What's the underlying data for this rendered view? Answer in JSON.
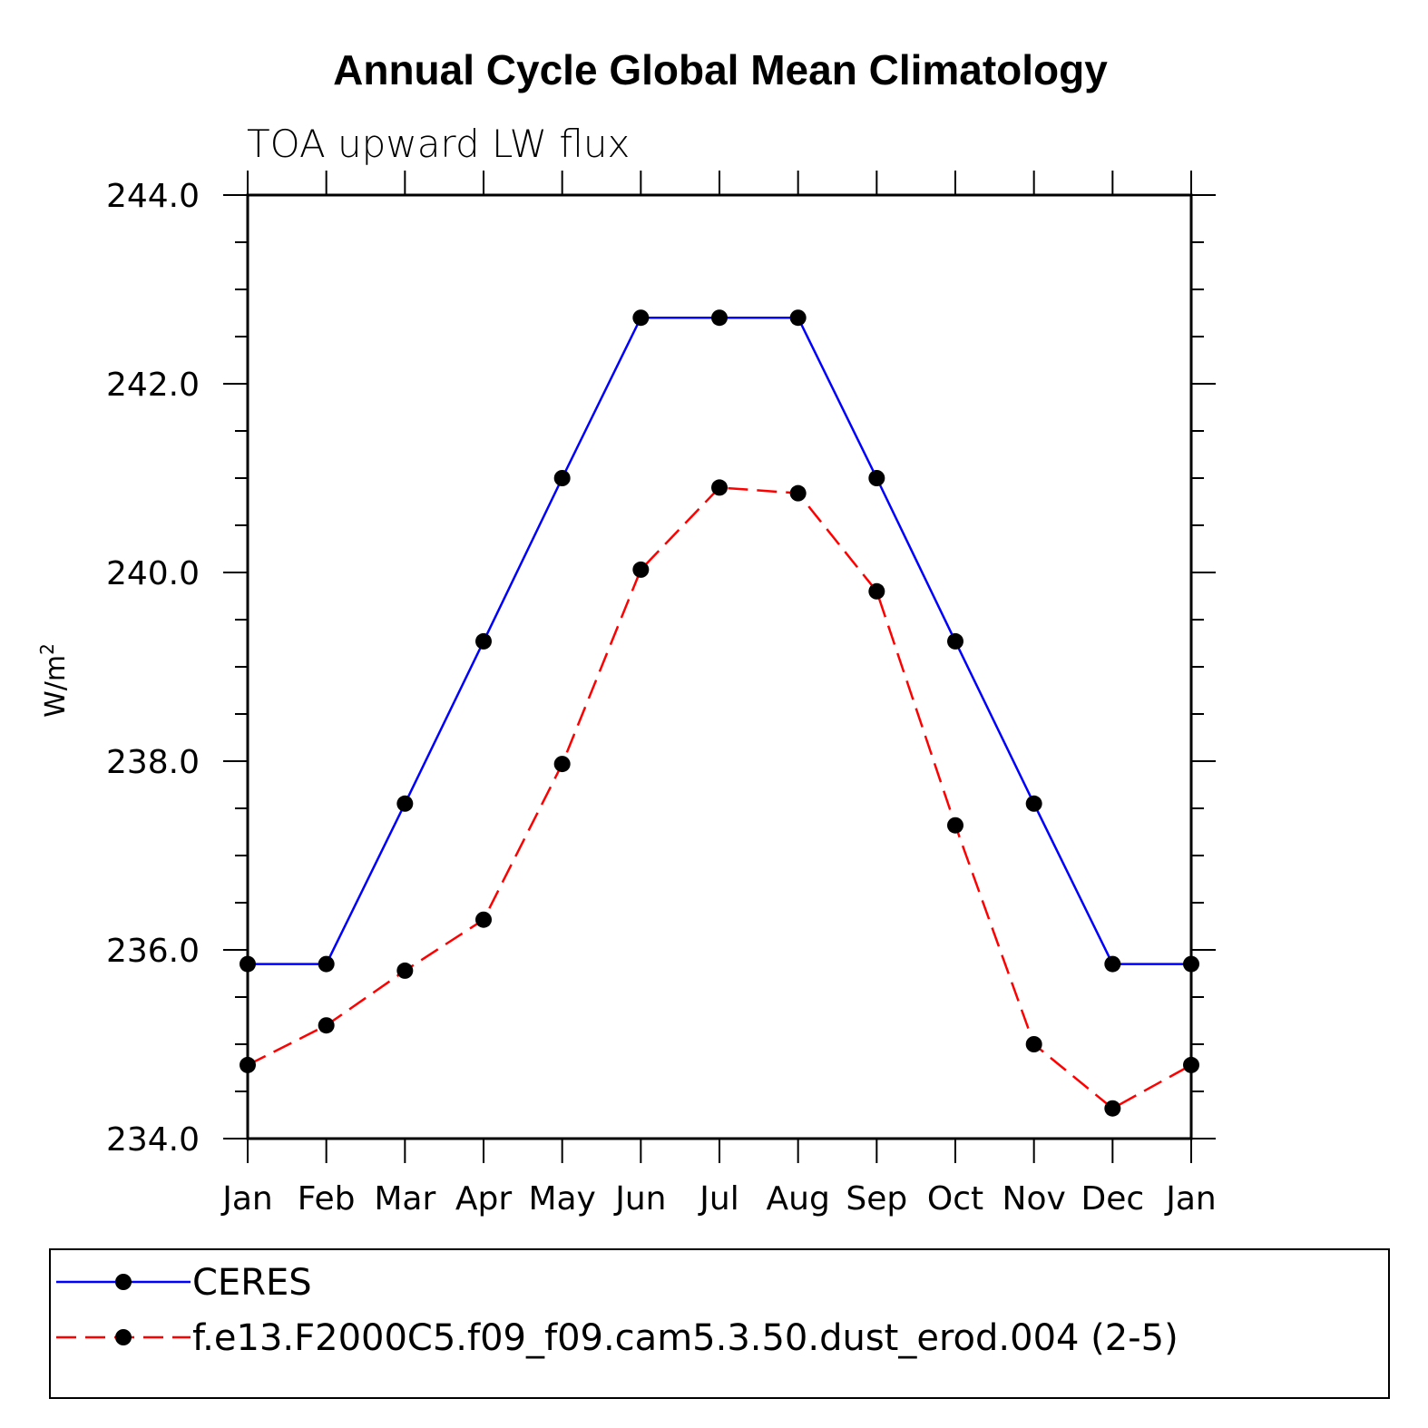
{
  "chart_data": {
    "type": "line",
    "title": "Annual Cycle Global Mean Climatology",
    "subtitle": "TOA upward LW flux",
    "ylabel": "W/m",
    "ylabel_superscript": "2",
    "xlabel": "",
    "categories": [
      "Jan",
      "Feb",
      "Mar",
      "Apr",
      "May",
      "Jun",
      "Jul",
      "Aug",
      "Sep",
      "Oct",
      "Nov",
      "Dec",
      "Jan"
    ],
    "ylim": [
      234.0,
      244.0
    ],
    "yticks": [
      234.0,
      236.0,
      238.0,
      240.0,
      242.0,
      244.0
    ],
    "ytick_labels": [
      "234.0",
      "236.0",
      "238.0",
      "240.0",
      "242.0",
      "244.0"
    ],
    "y_minor_step": 0.5,
    "grid": false,
    "legend_position": "bottom",
    "series": [
      {
        "name": "CERES",
        "color": "#0000ff",
        "dash": "solid",
        "values": [
          235.85,
          235.85,
          237.55,
          239.27,
          241.0,
          242.7,
          242.7,
          242.7,
          241.0,
          239.27,
          237.55,
          235.85,
          235.85
        ]
      },
      {
        "name": "f.e13.F2000C5.f09_f09.cam5.3.50.dust_erod.004 (2-5)",
        "color": "#ff0000",
        "dash": "dashed",
        "values": [
          234.78,
          235.2,
          235.78,
          236.32,
          237.97,
          240.03,
          240.9,
          240.84,
          239.8,
          237.32,
          235.0,
          234.32,
          234.78
        ]
      }
    ]
  }
}
